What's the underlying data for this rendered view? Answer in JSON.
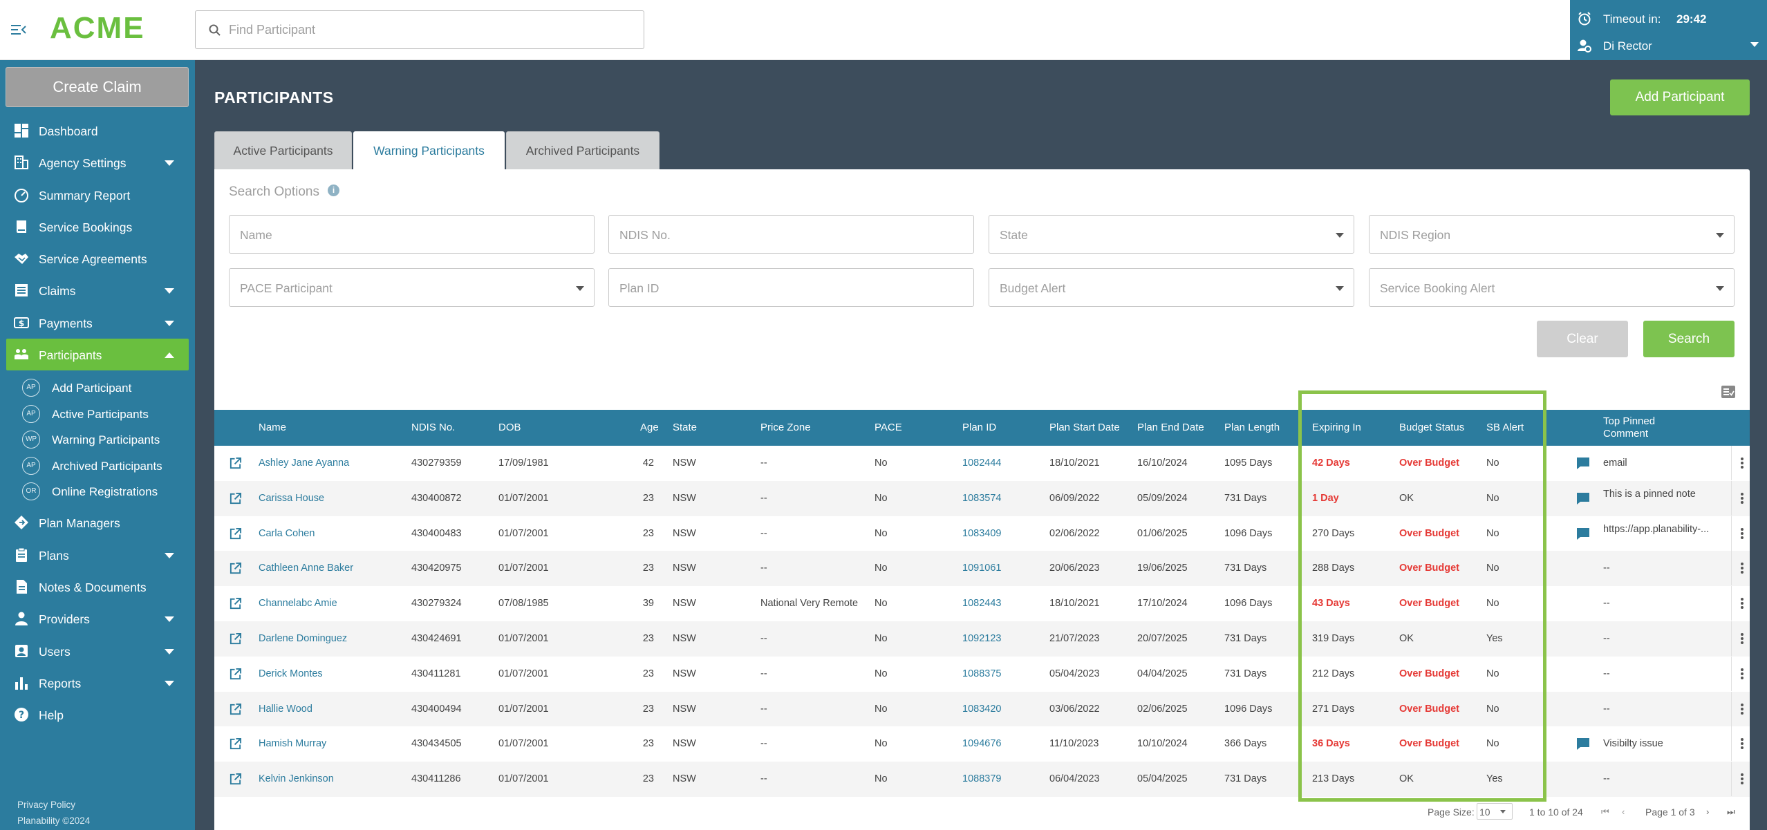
{
  "header": {
    "logo": "ACME",
    "search_placeholder": "Find Participant",
    "timeout_label": "Timeout in:",
    "timeout_value": "29:42",
    "user_name": "Di Rector"
  },
  "sidebar": {
    "create_claim": "Create Claim",
    "items": [
      {
        "label": "Dashboard",
        "icon": "dashboard-icon"
      },
      {
        "label": "Agency Settings",
        "icon": "building-icon"
      },
      {
        "label": "Summary Report",
        "icon": "gauge-icon"
      },
      {
        "label": "Service Bookings",
        "icon": "book-icon"
      },
      {
        "label": "Service Agreements",
        "icon": "handshake-icon"
      },
      {
        "label": "Claims",
        "icon": "list-icon"
      },
      {
        "label": "Payments",
        "icon": "dollar-icon"
      },
      {
        "label": "Participants",
        "icon": "people-icon"
      }
    ],
    "sub_items": [
      {
        "badge": "AP",
        "label": "Add Participant"
      },
      {
        "badge": "AP",
        "label": "Active Participants"
      },
      {
        "badge": "WP",
        "label": "Warning Participants"
      },
      {
        "badge": "AP",
        "label": "Archived Participants"
      },
      {
        "badge": "OR",
        "label": "Online Registrations"
      }
    ],
    "items_after": [
      {
        "label": "Plan Managers",
        "icon": "diamond-icon"
      },
      {
        "label": "Plans",
        "icon": "clipboard-icon"
      },
      {
        "label": "Notes & Documents",
        "icon": "document-icon"
      },
      {
        "label": "Providers",
        "icon": "provider-icon"
      },
      {
        "label": "Users",
        "icon": "user-icon"
      },
      {
        "label": "Reports",
        "icon": "bar-chart-icon"
      },
      {
        "label": "Help",
        "icon": "help-icon"
      }
    ],
    "footer_privacy": "Privacy Policy",
    "footer_copyright": "Planability ©2024"
  },
  "main": {
    "title": "PARTICIPANTS",
    "add_button": "Add Participant",
    "tabs": [
      "Active Participants",
      "Warning Participants",
      "Archived Participants"
    ],
    "active_tab": "Warning Participants",
    "search_options_label": "Search Options",
    "fields": {
      "name": "Name",
      "ndis_no": "NDIS No.",
      "state": "State",
      "ndis_region": "NDIS Region",
      "pace": "PACE Participant",
      "plan_id": "Plan ID",
      "budget_alert": "Budget Alert",
      "service_booking_alert": "Service Booking Alert"
    },
    "clear_button": "Clear",
    "search_button": "Search"
  },
  "table": {
    "columns": {
      "name": "Name",
      "ndis": "NDIS No.",
      "dob": "DOB",
      "age": "Age",
      "state": "State",
      "price_zone": "Price Zone",
      "pace": "PACE",
      "plan_id": "Plan ID",
      "plan_start": "Plan Start Date",
      "plan_end": "Plan End Date",
      "plan_length": "Plan Length",
      "expiring": "Expiring In",
      "budget_status": "Budget Status",
      "sb_alert": "SB Alert",
      "comment_1": "Top Pinned",
      "comment_2": "Comment"
    },
    "rows": [
      {
        "name": "Ashley Jane Ayanna",
        "ndis": "430279359",
        "dob": "17/09/1981",
        "age": "42",
        "state": "NSW",
        "zone": "--",
        "pace": "No",
        "plan_id": "1082444",
        "start": "18/10/2021",
        "end": "16/10/2024",
        "length": "1095 Days",
        "expiring": "42 Days",
        "exp_red": true,
        "budget": "Over Budget",
        "budget_red": true,
        "sb": "No",
        "has_comment": true,
        "comment": "email"
      },
      {
        "name": "Carissa House",
        "ndis": "430400872",
        "dob": "01/07/2001",
        "age": "23",
        "state": "NSW",
        "zone": "--",
        "pace": "No",
        "plan_id": "1083574",
        "start": "06/09/2022",
        "end": "05/09/2024",
        "length": "731 Days",
        "expiring": "1 Day",
        "exp_red": true,
        "budget": "OK",
        "budget_red": false,
        "sb": "No",
        "has_comment": true,
        "comment": "This is a pinned note"
      },
      {
        "name": "Carla Cohen",
        "ndis": "430400483",
        "dob": "01/07/2001",
        "age": "23",
        "state": "NSW",
        "zone": "--",
        "pace": "No",
        "plan_id": "1083409",
        "start": "02/06/2022",
        "end": "01/06/2025",
        "length": "1096 Days",
        "expiring": "270 Days",
        "exp_red": false,
        "budget": "Over Budget",
        "budget_red": true,
        "sb": "No",
        "has_comment": true,
        "comment": "https://app.planability-..."
      },
      {
        "name": "Cathleen Anne Baker",
        "ndis": "430420975",
        "dob": "01/07/2001",
        "age": "23",
        "state": "NSW",
        "zone": "--",
        "pace": "No",
        "plan_id": "1091061",
        "start": "20/06/2023",
        "end": "19/06/2025",
        "length": "731 Days",
        "expiring": "288 Days",
        "exp_red": false,
        "budget": "Over Budget",
        "budget_red": true,
        "sb": "No",
        "has_comment": false,
        "comment": "--"
      },
      {
        "name": "Channelabc Amie",
        "ndis": "430279324",
        "dob": "07/08/1985",
        "age": "39",
        "state": "NSW",
        "zone": "National Very Remote",
        "pace": "No",
        "plan_id": "1082443",
        "start": "18/10/2021",
        "end": "17/10/2024",
        "length": "1096 Days",
        "expiring": "43 Days",
        "exp_red": true,
        "budget": "Over Budget",
        "budget_red": true,
        "sb": "No",
        "has_comment": false,
        "comment": "--"
      },
      {
        "name": "Darlene Dominguez",
        "ndis": "430424691",
        "dob": "01/07/2001",
        "age": "23",
        "state": "NSW",
        "zone": "--",
        "pace": "No",
        "plan_id": "1092123",
        "start": "21/07/2023",
        "end": "20/07/2025",
        "length": "731 Days",
        "expiring": "319 Days",
        "exp_red": false,
        "budget": "OK",
        "budget_red": false,
        "sb": "Yes",
        "has_comment": false,
        "comment": "--"
      },
      {
        "name": "Derick Montes",
        "ndis": "430411281",
        "dob": "01/07/2001",
        "age": "23",
        "state": "NSW",
        "zone": "--",
        "pace": "No",
        "plan_id": "1088375",
        "start": "05/04/2023",
        "end": "04/04/2025",
        "length": "731 Days",
        "expiring": "212 Days",
        "exp_red": false,
        "budget": "Over Budget",
        "budget_red": true,
        "sb": "No",
        "has_comment": false,
        "comment": "--"
      },
      {
        "name": "Hallie Wood",
        "ndis": "430400494",
        "dob": "01/07/2001",
        "age": "23",
        "state": "NSW",
        "zone": "--",
        "pace": "No",
        "plan_id": "1083420",
        "start": "03/06/2022",
        "end": "02/06/2025",
        "length": "1096 Days",
        "expiring": "271 Days",
        "exp_red": false,
        "budget": "Over Budget",
        "budget_red": true,
        "sb": "No",
        "has_comment": false,
        "comment": "--"
      },
      {
        "name": "Hamish Murray",
        "ndis": "430434505",
        "dob": "01/07/2001",
        "age": "23",
        "state": "NSW",
        "zone": "--",
        "pace": "No",
        "plan_id": "1094676",
        "start": "11/10/2023",
        "end": "10/10/2024",
        "length": "366 Days",
        "expiring": "36 Days",
        "exp_red": true,
        "budget": "Over Budget",
        "budget_red": true,
        "sb": "No",
        "has_comment": true,
        "comment": "Visibilty issue"
      },
      {
        "name": "Kelvin Jenkinson",
        "ndis": "430411286",
        "dob": "01/07/2001",
        "age": "23",
        "state": "NSW",
        "zone": "--",
        "pace": "No",
        "plan_id": "1088379",
        "start": "06/04/2023",
        "end": "05/04/2025",
        "length": "731 Days",
        "expiring": "213 Days",
        "exp_red": false,
        "budget": "OK",
        "budget_red": false,
        "sb": "Yes",
        "has_comment": false,
        "comment": "--"
      }
    ]
  },
  "pager": {
    "page_size_label": "Page Size:",
    "page_size": "10",
    "range": "1 to 10 of 24",
    "page_info": "Page 1 of 3"
  },
  "colors": {
    "primary": "#2c7c9e",
    "accent": "#7dc350",
    "alert_red": "#e53935",
    "highlight": "#8bc34a"
  }
}
